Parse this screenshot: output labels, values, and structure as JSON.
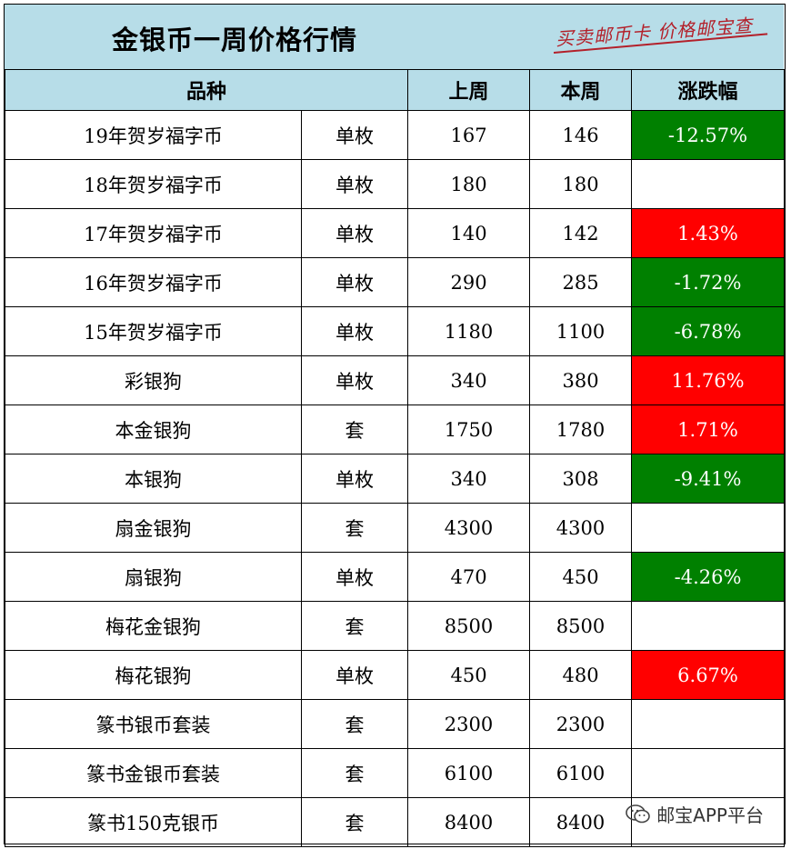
{
  "title": "金银币一周价格行情",
  "slogan": "买卖邮币卡 价格邮宝查",
  "columns": {
    "variety": "品种",
    "last_week": "上周",
    "this_week": "本周",
    "change": "涨跌幅"
  },
  "rows": [
    {
      "name": "19年贺岁福字币",
      "unit": "单枚",
      "last": "167",
      "current": "146",
      "change": "-12.57%",
      "trend": "down"
    },
    {
      "name": "18年贺岁福字币",
      "unit": "单枚",
      "last": "180",
      "current": "180",
      "change": "",
      "trend": "none"
    },
    {
      "name": "17年贺岁福字币",
      "unit": "单枚",
      "last": "140",
      "current": "142",
      "change": "1.43%",
      "trend": "up"
    },
    {
      "name": "16年贺岁福字币",
      "unit": "单枚",
      "last": "290",
      "current": "285",
      "change": "-1.72%",
      "trend": "down"
    },
    {
      "name": "15年贺岁福字币",
      "unit": "单枚",
      "last": "1180",
      "current": "1100",
      "change": "-6.78%",
      "trend": "down"
    },
    {
      "name": "彩银狗",
      "unit": "单枚",
      "last": "340",
      "current": "380",
      "change": "11.76%",
      "trend": "up"
    },
    {
      "name": "本金银狗",
      "unit": "套",
      "last": "1750",
      "current": "1780",
      "change": "1.71%",
      "trend": "up"
    },
    {
      "name": "本银狗",
      "unit": "单枚",
      "last": "340",
      "current": "308",
      "change": "-9.41%",
      "trend": "down"
    },
    {
      "name": "扇金银狗",
      "unit": "套",
      "last": "4300",
      "current": "4300",
      "change": "",
      "trend": "none"
    },
    {
      "name": "扇银狗",
      "unit": "单枚",
      "last": "470",
      "current": "450",
      "change": "-4.26%",
      "trend": "down"
    },
    {
      "name": "梅花金银狗",
      "unit": "套",
      "last": "8500",
      "current": "8500",
      "change": "",
      "trend": "none"
    },
    {
      "name": "梅花银狗",
      "unit": "单枚",
      "last": "450",
      "current": "480",
      "change": "6.67%",
      "trend": "up"
    },
    {
      "name": "篆书银币套装",
      "unit": "套",
      "last": "2300",
      "current": "2300",
      "change": "",
      "trend": "none"
    },
    {
      "name": "篆书金银币套装",
      "unit": "套",
      "last": "6100",
      "current": "6100",
      "change": "",
      "trend": "none"
    },
    {
      "name": "篆书150克银币",
      "unit": "套",
      "last": "8400",
      "current": "8400",
      "change": "",
      "trend": "none"
    }
  ],
  "colors": {
    "header_bg": "#b7dde8",
    "up": "#ff0000",
    "down": "#008000",
    "slogan": "#b3202a"
  },
  "watermark": {
    "icon": "wechat-icon",
    "text": "邮宝APP平台"
  }
}
